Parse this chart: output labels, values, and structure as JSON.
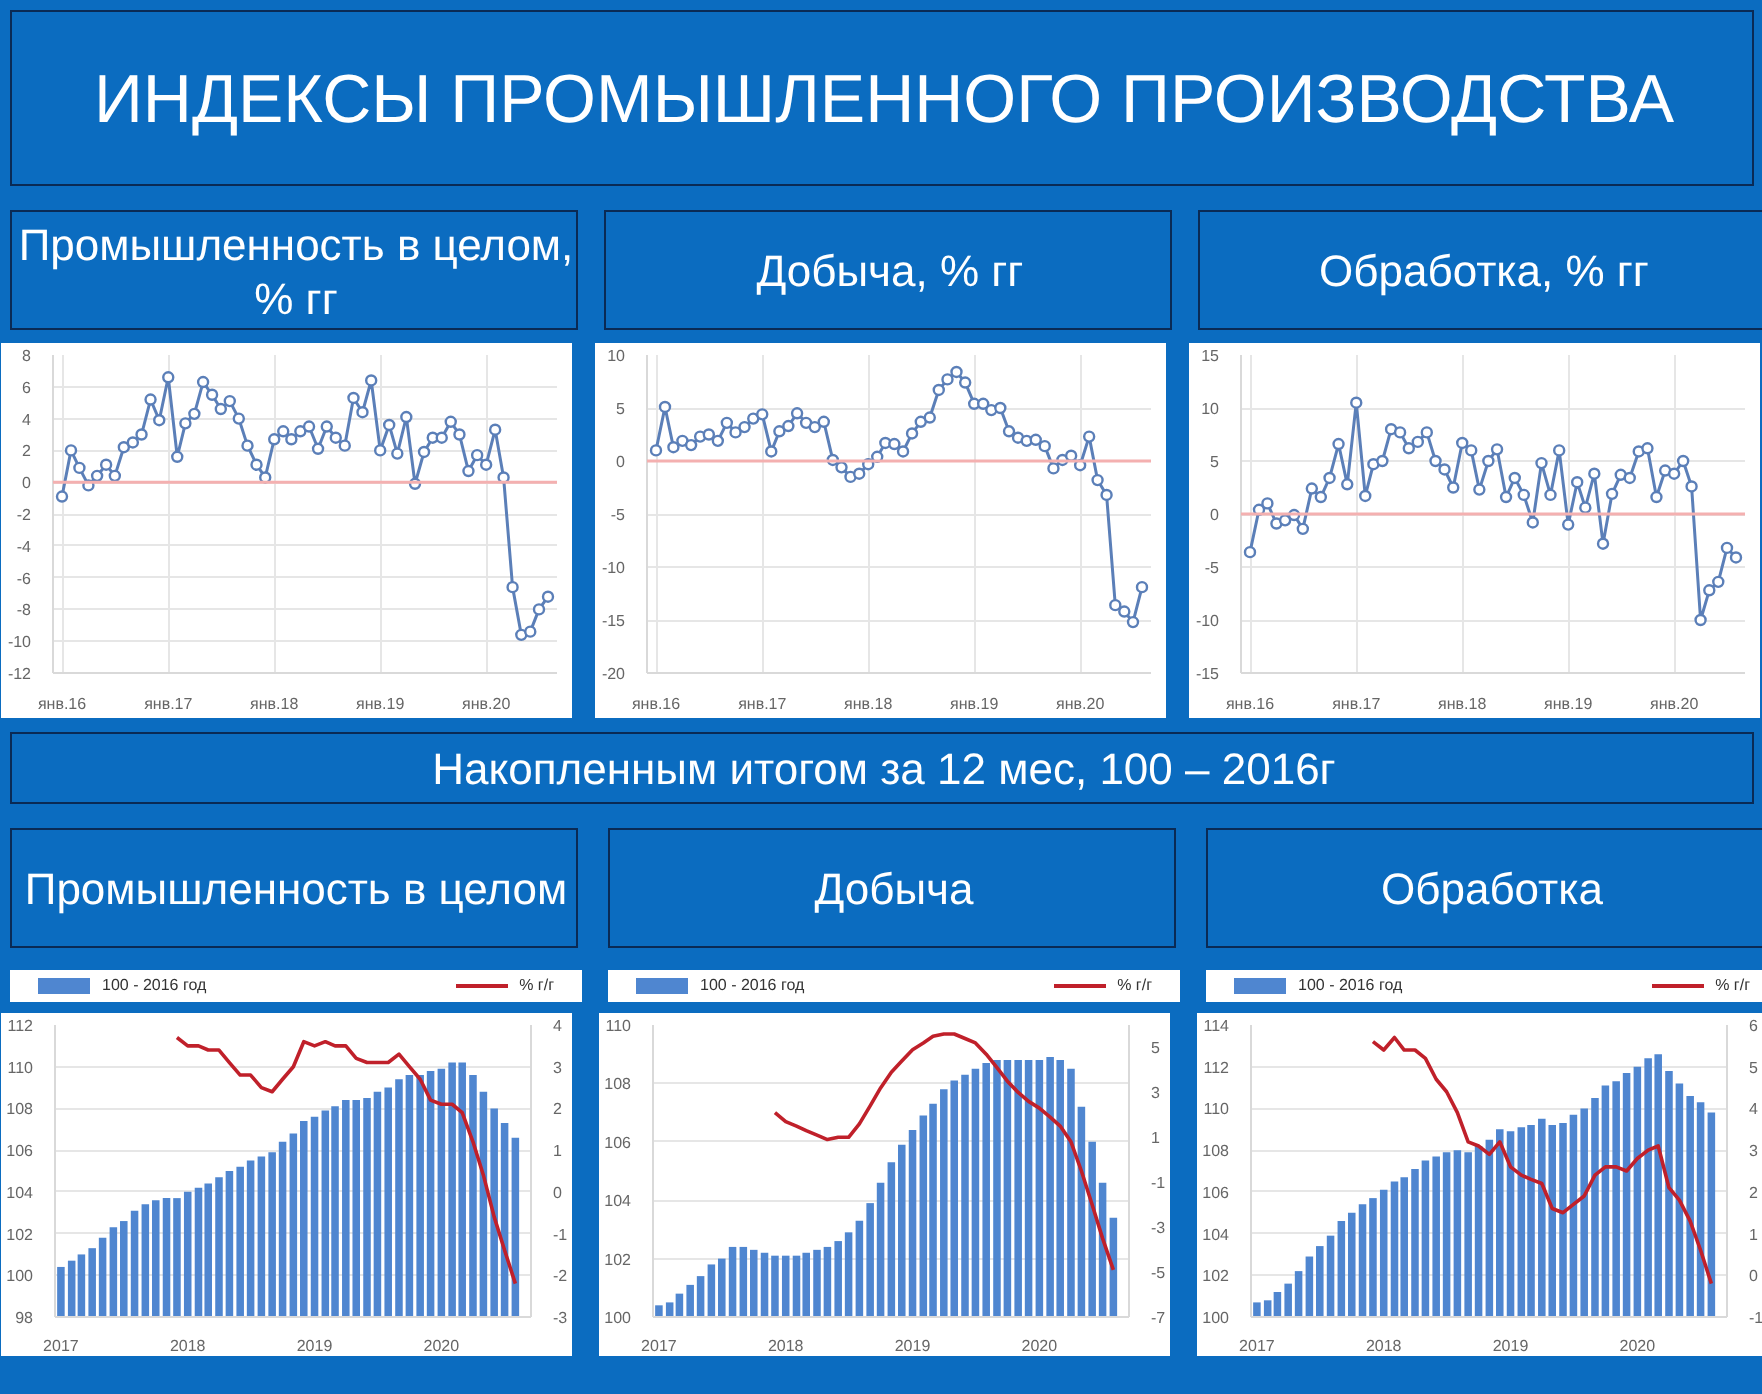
{
  "chart_data": [
    {
      "type": "other",
      "title": "ИНДЕКСЫ ПРОМЫШЛЕННОГО ПРОИЗВОДСТВА"
    },
    {
      "type": "line",
      "title": "Промышленность в целом, % гг",
      "grid": true,
      "marker": "circle",
      "x": [
        "2016-01",
        "2016-02",
        "2016-03",
        "2016-04",
        "2016-05",
        "2016-06",
        "2016-07",
        "2016-08",
        "2016-09",
        "2016-10",
        "2016-11",
        "2016-12",
        "2017-01",
        "2017-02",
        "2017-03",
        "2017-04",
        "2017-05",
        "2017-06",
        "2017-07",
        "2017-08",
        "2017-09",
        "2017-10",
        "2017-11",
        "2017-12",
        "2018-01",
        "2018-02",
        "2018-03",
        "2018-04",
        "2018-05",
        "2018-06",
        "2018-07",
        "2018-08",
        "2018-09",
        "2018-10",
        "2018-11",
        "2018-12",
        "2019-01",
        "2019-02",
        "2019-03",
        "2019-04",
        "2019-05",
        "2019-06",
        "2019-07",
        "2019-08",
        "2019-09",
        "2019-10",
        "2019-11",
        "2019-12",
        "2020-01",
        "2020-02",
        "2020-03",
        "2020-04",
        "2020-05",
        "2020-06",
        "2020-07",
        "2020-08"
      ],
      "xlim": [
        "2015-12",
        "2020-09"
      ],
      "xticks": [
        {
          "value": "2016-01",
          "label": "янв.16"
        },
        {
          "value": "2017-01",
          "label": "янв.17"
        },
        {
          "value": "2018-01",
          "label": "янв.18"
        },
        {
          "value": "2019-01",
          "label": "янв.19"
        },
        {
          "value": "2020-01",
          "label": "янв.20"
        }
      ],
      "ylim": [
        -12,
        8
      ],
      "yticks": [
        -12,
        -10,
        -8,
        -6,
        -4,
        -2,
        0,
        2,
        4,
        6,
        8
      ],
      "ref_lines": [
        {
          "axis": "y",
          "value": 0,
          "color": "#f4b0b0"
        }
      ],
      "series": [
        {
          "color": "#5b7fb8",
          "values": [
            -0.9,
            2.0,
            0.9,
            -0.2,
            0.4,
            1.1,
            0.4,
            2.2,
            2.5,
            3.0,
            5.2,
            3.9,
            6.6,
            1.6,
            3.7,
            4.3,
            6.3,
            5.5,
            4.6,
            5.1,
            4.0,
            2.3,
            1.1,
            0.3,
            2.7,
            3.2,
            2.7,
            3.2,
            3.5,
            2.1,
            3.5,
            2.8,
            2.3,
            5.3,
            4.4,
            6.4,
            2.0,
            3.6,
            1.8,
            4.1,
            -0.1,
            1.9,
            2.8,
            2.8,
            3.8,
            3.0,
            0.7,
            1.7,
            1.1,
            3.3,
            0.3,
            -6.6,
            -9.6,
            -9.4,
            -8.0,
            -7.2
          ]
        }
      ]
    },
    {
      "type": "line",
      "title": "Добыча, % гг",
      "grid": true,
      "marker": "circle",
      "x": [
        "2016-01",
        "2016-02",
        "2016-03",
        "2016-04",
        "2016-05",
        "2016-06",
        "2016-07",
        "2016-08",
        "2016-09",
        "2016-10",
        "2016-11",
        "2016-12",
        "2017-01",
        "2017-02",
        "2017-03",
        "2017-04",
        "2017-05",
        "2017-06",
        "2017-07",
        "2017-08",
        "2017-09",
        "2017-10",
        "2017-11",
        "2017-12",
        "2018-01",
        "2018-02",
        "2018-03",
        "2018-04",
        "2018-05",
        "2018-06",
        "2018-07",
        "2018-08",
        "2018-09",
        "2018-10",
        "2018-11",
        "2018-12",
        "2019-01",
        "2019-02",
        "2019-03",
        "2019-04",
        "2019-05",
        "2019-06",
        "2019-07",
        "2019-08",
        "2019-09",
        "2019-10",
        "2019-11",
        "2019-12",
        "2020-01",
        "2020-02",
        "2020-03",
        "2020-04",
        "2020-05",
        "2020-06",
        "2020-07",
        "2020-08"
      ],
      "xlim": [
        "2015-12",
        "2020-09"
      ],
      "xticks": [
        {
          "value": "2016-01",
          "label": "янв.16"
        },
        {
          "value": "2017-01",
          "label": "янв.17"
        },
        {
          "value": "2018-01",
          "label": "янв.18"
        },
        {
          "value": "2019-01",
          "label": "янв.19"
        },
        {
          "value": "2020-01",
          "label": "янв.20"
        }
      ],
      "ylim": [
        -20,
        10
      ],
      "yticks": [
        -20,
        -15,
        -10,
        -5,
        0,
        5,
        10
      ],
      "ref_lines": [
        {
          "axis": "y",
          "value": 0,
          "color": "#f4b0b0"
        }
      ],
      "series": [
        {
          "color": "#5b7fb8",
          "values": [
            1.0,
            5.1,
            1.3,
            1.9,
            1.5,
            2.3,
            2.5,
            1.9,
            3.6,
            2.7,
            3.2,
            4.0,
            4.4,
            0.9,
            2.8,
            3.3,
            4.5,
            3.6,
            3.2,
            3.7,
            0.1,
            -0.6,
            -1.5,
            -1.2,
            -0.3,
            0.4,
            1.7,
            1.6,
            0.9,
            2.6,
            3.7,
            4.1,
            6.7,
            7.7,
            8.4,
            7.4,
            5.4,
            5.4,
            4.8,
            5.0,
            2.8,
            2.2,
            1.9,
            2.0,
            1.4,
            -0.7,
            0.1,
            0.5,
            -0.4,
            2.3,
            -1.8,
            -3.2,
            -13.6,
            -14.2,
            -15.2,
            -11.9
          ]
        }
      ]
    },
    {
      "type": "line",
      "title": "Обработка, % гг",
      "grid": true,
      "marker": "circle",
      "x": [
        "2016-01",
        "2016-02",
        "2016-03",
        "2016-04",
        "2016-05",
        "2016-06",
        "2016-07",
        "2016-08",
        "2016-09",
        "2016-10",
        "2016-11",
        "2016-12",
        "2017-01",
        "2017-02",
        "2017-03",
        "2017-04",
        "2017-05",
        "2017-06",
        "2017-07",
        "2017-08",
        "2017-09",
        "2017-10",
        "2017-11",
        "2017-12",
        "2018-01",
        "2018-02",
        "2018-03",
        "2018-04",
        "2018-05",
        "2018-06",
        "2018-07",
        "2018-08",
        "2018-09",
        "2018-10",
        "2018-11",
        "2018-12",
        "2019-01",
        "2019-02",
        "2019-03",
        "2019-04",
        "2019-05",
        "2019-06",
        "2019-07",
        "2019-08",
        "2019-09",
        "2019-10",
        "2019-11",
        "2019-12",
        "2020-01",
        "2020-02",
        "2020-03",
        "2020-04",
        "2020-05",
        "2020-06",
        "2020-07",
        "2020-08"
      ],
      "xlim": [
        "2015-12",
        "2020-09"
      ],
      "xticks": [
        {
          "value": "2016-01",
          "label": "янв.16"
        },
        {
          "value": "2017-01",
          "label": "янв.17"
        },
        {
          "value": "2018-01",
          "label": "янв.18"
        },
        {
          "value": "2019-01",
          "label": "янв.19"
        },
        {
          "value": "2020-01",
          "label": "янв.20"
        }
      ],
      "ylim": [
        -15,
        15
      ],
      "yticks": [
        -15,
        -10,
        -5,
        0,
        5,
        10,
        15
      ],
      "ref_lines": [
        {
          "axis": "y",
          "value": 0,
          "color": "#f4b0b0"
        }
      ],
      "series": [
        {
          "color": "#5b7fb8",
          "values": [
            -3.6,
            0.4,
            1.0,
            -0.9,
            -0.6,
            -0.1,
            -1.4,
            2.4,
            1.6,
            3.4,
            6.6,
            2.8,
            10.5,
            1.7,
            4.7,
            5.0,
            8.0,
            7.7,
            6.2,
            6.8,
            7.7,
            5.0,
            4.2,
            2.5,
            6.7,
            6.0,
            2.3,
            5.0,
            6.1,
            1.6,
            3.4,
            1.8,
            -0.8,
            4.8,
            1.8,
            6.0,
            -1.0,
            3.0,
            0.6,
            3.8,
            -2.8,
            1.9,
            3.7,
            3.4,
            5.9,
            6.2,
            1.6,
            4.1,
            3.8,
            5.0,
            2.6,
            -10.0,
            -7.2,
            -6.4,
            -3.2,
            -4.1
          ]
        }
      ]
    },
    {
      "type": "other",
      "title": "Накопленным итогом за 12 мес, 100 – 2016г"
    },
    {
      "type": "bar",
      "title": "Промышленность в целом",
      "grid": "y",
      "legend": "top",
      "x": [
        "2017-01",
        "2017-02",
        "2017-03",
        "2017-04",
        "2017-05",
        "2017-06",
        "2017-07",
        "2017-08",
        "2017-09",
        "2017-10",
        "2017-11",
        "2017-12",
        "2018-01",
        "2018-02",
        "2018-03",
        "2018-04",
        "2018-05",
        "2018-06",
        "2018-07",
        "2018-08",
        "2018-09",
        "2018-10",
        "2018-11",
        "2018-12",
        "2019-01",
        "2019-02",
        "2019-03",
        "2019-04",
        "2019-05",
        "2019-06",
        "2019-07",
        "2019-08",
        "2019-09",
        "2019-10",
        "2019-11",
        "2019-12",
        "2020-01",
        "2020-02",
        "2020-03",
        "2020-04",
        "2020-05",
        "2020-06",
        "2020-07",
        "2020-08"
      ],
      "xlim": [
        "2016-12-15",
        "2020-09-15"
      ],
      "xticks": [
        {
          "value": "2017-01",
          "label": "2017"
        },
        {
          "value": "2018-01",
          "label": "2018"
        },
        {
          "value": "2019-01",
          "label": "2019"
        },
        {
          "value": "2020-01",
          "label": "2020"
        }
      ],
      "ylim": [
        98,
        112
      ],
      "yticks": [
        98,
        100,
        102,
        104,
        106,
        108,
        110,
        112
      ],
      "y2lim": [
        -3,
        4
      ],
      "y2ticks": [
        -3,
        -2,
        -1,
        0,
        1,
        2,
        3,
        4
      ],
      "series": [
        {
          "name": "100 - 2016 год",
          "color": "#4f86d0",
          "values": [
            100.4,
            100.7,
            101.0,
            101.3,
            101.8,
            102.3,
            102.6,
            103.1,
            103.4,
            103.6,
            103.7,
            103.7,
            104.0,
            104.2,
            104.4,
            104.7,
            105.0,
            105.2,
            105.5,
            105.7,
            105.9,
            106.4,
            106.8,
            107.4,
            107.6,
            107.9,
            108.1,
            108.4,
            108.4,
            108.5,
            108.8,
            109.0,
            109.4,
            109.6,
            109.6,
            109.8,
            109.9,
            110.2,
            110.2,
            109.6,
            108.8,
            108.0,
            107.3,
            106.6
          ]
        },
        {
          "name": "% г/г",
          "type": "line",
          "axis": "y2",
          "color": "#c0202a",
          "values": [
            null,
            null,
            null,
            null,
            null,
            null,
            null,
            null,
            null,
            null,
            null,
            3.7,
            3.5,
            3.5,
            3.4,
            3.4,
            3.1,
            2.8,
            2.8,
            2.5,
            2.4,
            2.7,
            3.0,
            3.6,
            3.5,
            3.6,
            3.5,
            3.5,
            3.2,
            3.1,
            3.1,
            3.1,
            3.3,
            3.0,
            2.7,
            2.2,
            2.1,
            2.1,
            1.9,
            1.2,
            0.4,
            -0.6,
            -1.4,
            -2.2
          ]
        }
      ]
    },
    {
      "type": "bar",
      "title": "Добыча",
      "grid": "y",
      "legend": "top",
      "x": [
        "2017-01",
        "2017-02",
        "2017-03",
        "2017-04",
        "2017-05",
        "2017-06",
        "2017-07",
        "2017-08",
        "2017-09",
        "2017-10",
        "2017-11",
        "2017-12",
        "2018-01",
        "2018-02",
        "2018-03",
        "2018-04",
        "2018-05",
        "2018-06",
        "2018-07",
        "2018-08",
        "2018-09",
        "2018-10",
        "2018-11",
        "2018-12",
        "2019-01",
        "2019-02",
        "2019-03",
        "2019-04",
        "2019-05",
        "2019-06",
        "2019-07",
        "2019-08",
        "2019-09",
        "2019-10",
        "2019-11",
        "2019-12",
        "2020-01",
        "2020-02",
        "2020-03",
        "2020-04",
        "2020-05",
        "2020-06",
        "2020-07",
        "2020-08"
      ],
      "xlim": [
        "2016-12-15",
        "2020-09-15"
      ],
      "xticks": [
        {
          "value": "2017-01",
          "label": "2017"
        },
        {
          "value": "2018-01",
          "label": "2018"
        },
        {
          "value": "2019-01",
          "label": "2019"
        },
        {
          "value": "2020-01",
          "label": "2020"
        }
      ],
      "ylim": [
        100,
        110
      ],
      "yticks": [
        100,
        102,
        104,
        106,
        108,
        110
      ],
      "y2lim": [
        -7,
        6
      ],
      "y2ticks": [
        -7,
        -5,
        -3,
        -1,
        1,
        3,
        5
      ],
      "series": [
        {
          "name": "100 - 2016 год",
          "color": "#4f86d0",
          "values": [
            100.4,
            100.5,
            100.8,
            101.1,
            101.4,
            101.8,
            102.0,
            102.4,
            102.4,
            102.3,
            102.2,
            102.1,
            102.1,
            102.1,
            102.2,
            102.3,
            102.4,
            102.6,
            102.9,
            103.3,
            103.9,
            104.6,
            105.3,
            105.9,
            106.4,
            106.9,
            107.3,
            107.8,
            108.1,
            108.3,
            108.5,
            108.7,
            108.8,
            108.8,
            108.8,
            108.8,
            108.8,
            108.9,
            108.8,
            108.5,
            107.2,
            106.0,
            104.6,
            103.4
          ]
        },
        {
          "name": "% г/г",
          "type": "line",
          "axis": "y2",
          "color": "#c0202a",
          "values": [
            null,
            null,
            null,
            null,
            null,
            null,
            null,
            null,
            null,
            null,
            null,
            2.1,
            1.7,
            1.5,
            1.3,
            1.1,
            0.9,
            1.0,
            1.0,
            1.6,
            2.4,
            3.2,
            3.9,
            4.4,
            4.9,
            5.2,
            5.5,
            5.6,
            5.6,
            5.4,
            5.2,
            4.7,
            4.1,
            3.5,
            3.0,
            2.6,
            2.3,
            1.9,
            1.5,
            0.8,
            -0.5,
            -2.0,
            -3.5,
            -4.9
          ]
        }
      ]
    },
    {
      "type": "bar",
      "title": "Обработка",
      "grid": "y",
      "legend": "top",
      "x": [
        "2017-01",
        "2017-02",
        "2017-03",
        "2017-04",
        "2017-05",
        "2017-06",
        "2017-07",
        "2017-08",
        "2017-09",
        "2017-10",
        "2017-11",
        "2017-12",
        "2018-01",
        "2018-02",
        "2018-03",
        "2018-04",
        "2018-05",
        "2018-06",
        "2018-07",
        "2018-08",
        "2018-09",
        "2018-10",
        "2018-11",
        "2018-12",
        "2019-01",
        "2019-02",
        "2019-03",
        "2019-04",
        "2019-05",
        "2019-06",
        "2019-07",
        "2019-08",
        "2019-09",
        "2019-10",
        "2019-11",
        "2019-12",
        "2020-01",
        "2020-02",
        "2020-03",
        "2020-04",
        "2020-05",
        "2020-06",
        "2020-07",
        "2020-08"
      ],
      "xlim": [
        "2016-12-15",
        "2020-09-15"
      ],
      "xticks": [
        {
          "value": "2017-01",
          "label": "2017"
        },
        {
          "value": "2018-01",
          "label": "2018"
        },
        {
          "value": "2019-01",
          "label": "2019"
        },
        {
          "value": "2020-01",
          "label": "2020"
        }
      ],
      "ylim": [
        100,
        114
      ],
      "yticks": [
        100,
        102,
        104,
        106,
        108,
        110,
        112,
        114
      ],
      "y2lim": [
        -1,
        6
      ],
      "y2ticks": [
        -1,
        0,
        1,
        2,
        3,
        4,
        5,
        6
      ],
      "series": [
        {
          "name": "100 - 2016 год",
          "color": "#4f86d0",
          "values": [
            100.7,
            100.8,
            101.2,
            101.6,
            102.2,
            102.9,
            103.4,
            103.9,
            104.6,
            105.0,
            105.4,
            105.7,
            106.1,
            106.5,
            106.7,
            107.1,
            107.5,
            107.7,
            107.9,
            108.0,
            107.9,
            108.2,
            108.5,
            109.0,
            108.9,
            109.1,
            109.2,
            109.5,
            109.2,
            109.3,
            109.7,
            110.0,
            110.5,
            111.1,
            111.3,
            111.7,
            112.0,
            112.4,
            112.6,
            111.8,
            111.2,
            110.6,
            110.3,
            109.8
          ]
        },
        {
          "name": "% г/г",
          "type": "line",
          "axis": "y2",
          "color": "#c0202a",
          "values": [
            null,
            null,
            null,
            null,
            null,
            null,
            null,
            null,
            null,
            null,
            null,
            5.6,
            5.4,
            5.7,
            5.4,
            5.4,
            5.2,
            4.7,
            4.4,
            3.9,
            3.2,
            3.1,
            2.9,
            3.2,
            2.6,
            2.4,
            2.3,
            2.2,
            1.6,
            1.5,
            1.7,
            1.9,
            2.4,
            2.6,
            2.6,
            2.5,
            2.8,
            3.0,
            3.1,
            2.1,
            1.8,
            1.3,
            0.6,
            -0.2
          ]
        }
      ]
    }
  ]
}
